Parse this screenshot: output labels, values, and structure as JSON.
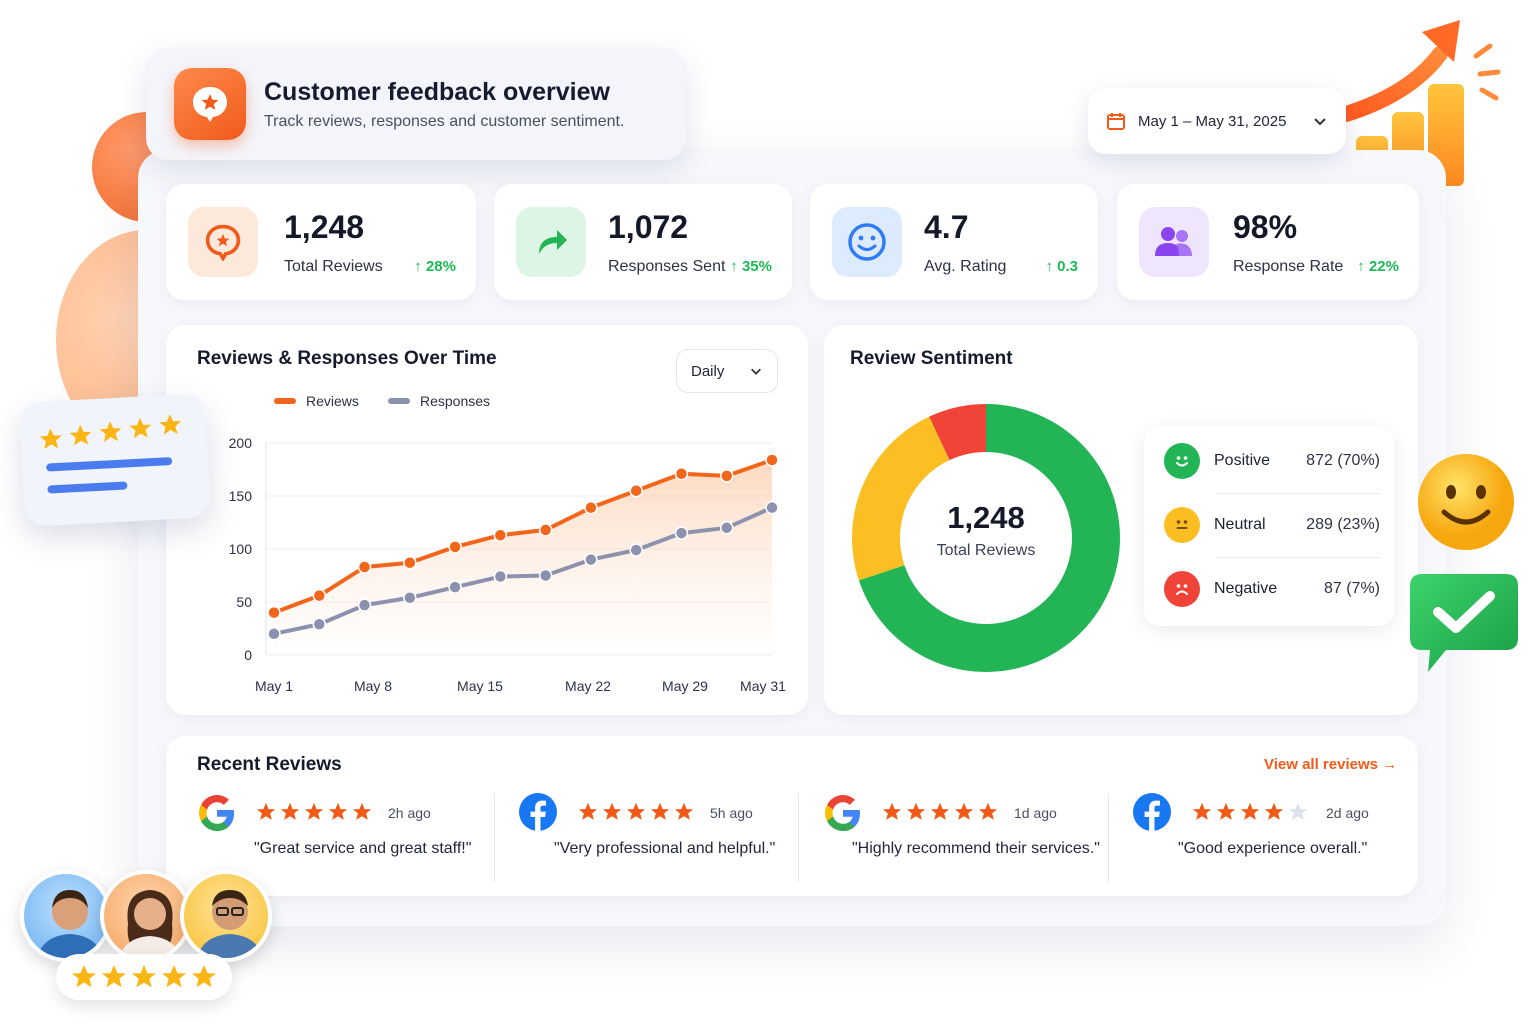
{
  "header": {
    "title": "Customer feedback overview",
    "subtitle": "Track reviews, responses and customer sentiment."
  },
  "date_range": {
    "label": "May 1 – May 31, 2025"
  },
  "kpis": [
    {
      "value": "1,248",
      "label": "Total Reviews",
      "delta": "28%",
      "icon": "chat-star-icon"
    },
    {
      "value": "1,072",
      "label": "Responses Sent",
      "delta": "35%",
      "icon": "reply-arrow-icon"
    },
    {
      "value": "4.7",
      "label": "Avg. Rating",
      "delta": "0.3",
      "icon": "smiley-icon"
    },
    {
      "value": "98%",
      "label": "Response Rate",
      "delta": "22%",
      "icon": "users-icon"
    }
  ],
  "colors": {
    "accent": "#f25a18",
    "reviews_line": "#f2661c",
    "responses_line": "#8c91ad",
    "positive": "#22b455",
    "neutral": "#fbbf24",
    "negative": "#f04438",
    "delta": "#1db954"
  },
  "trend_chart": {
    "title": "Reviews & Responses Over Time",
    "granularity": "Daily",
    "chart_data": {
      "type": "line",
      "x_labels": [
        "May 1",
        "May 8",
        "May 15",
        "May 22",
        "May 29",
        "May 31"
      ],
      "ylim": [
        0,
        200
      ],
      "y_ticks": [
        "0",
        "50",
        "100",
        "150",
        "200"
      ],
      "grid": true,
      "series": [
        {
          "name": "Reviews",
          "values": [
            40,
            56,
            83,
            87,
            102,
            113,
            118,
            139,
            155,
            171,
            169,
            184
          ]
        },
        {
          "name": "Responses",
          "values": [
            20,
            29,
            47,
            54,
            64,
            74,
            75,
            90,
            99,
            115,
            120,
            139
          ]
        }
      ]
    }
  },
  "sentiment": {
    "title": "Review Sentiment",
    "center_value": "1,248",
    "center_label": "Total Reviews",
    "chart_data": {
      "type": "pie",
      "slices": [
        {
          "name": "Positive",
          "value": 872,
          "display": "872 (70%)"
        },
        {
          "name": "Neutral",
          "value": 289,
          "display": "289 (23%)"
        },
        {
          "name": "Negative",
          "value": 87,
          "display": "87 (7%)"
        }
      ]
    }
  },
  "recent_reviews": {
    "title": "Recent Reviews",
    "view_all": "View all reviews",
    "items": [
      {
        "source": "google",
        "rating": 5,
        "ago": "2h ago",
        "quote": "\"Great service and great staff!\""
      },
      {
        "source": "facebook",
        "rating": 5,
        "ago": "5h ago",
        "quote": "\"Very professional and helpful.\""
      },
      {
        "source": "google",
        "rating": 5,
        "ago": "1d ago",
        "quote": "\"Highly recommend their services.\""
      },
      {
        "source": "facebook",
        "rating": 4,
        "ago": "2d ago",
        "quote": "\"Good experience overall.\""
      }
    ]
  }
}
